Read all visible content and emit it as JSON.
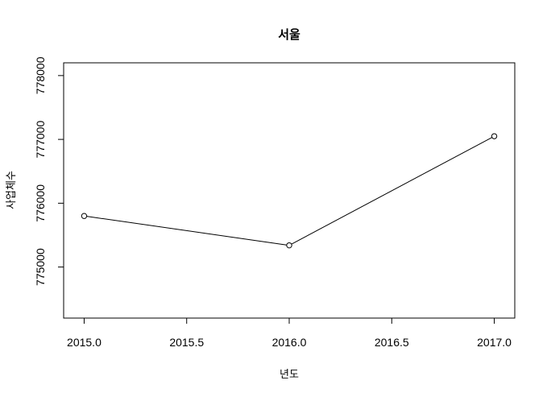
{
  "chart_data": {
    "type": "line",
    "title": "서울",
    "xlabel": "년도",
    "ylabel": "사업체수",
    "x": [
      2015,
      2016,
      2017
    ],
    "y": [
      775800,
      775340,
      777050
    ],
    "xlim": [
      2014.9,
      2017.1
    ],
    "ylim": [
      774200,
      778200
    ],
    "xticks": [
      2015,
      2015.5,
      2016,
      2016.5,
      2017
    ],
    "xtick_labels": [
      "2015.0",
      "2015.5",
      "2016.0",
      "2016.5",
      "2017.0"
    ],
    "yticks": [
      775000,
      776000,
      777000,
      778000
    ],
    "ytick_labels": [
      "775000",
      "776000",
      "777000",
      "778000"
    ],
    "markers": "open-circle",
    "grid": false,
    "colors": {
      "line": "#000000",
      "marker_fill": "#ffffff",
      "frame": "#000000"
    }
  }
}
